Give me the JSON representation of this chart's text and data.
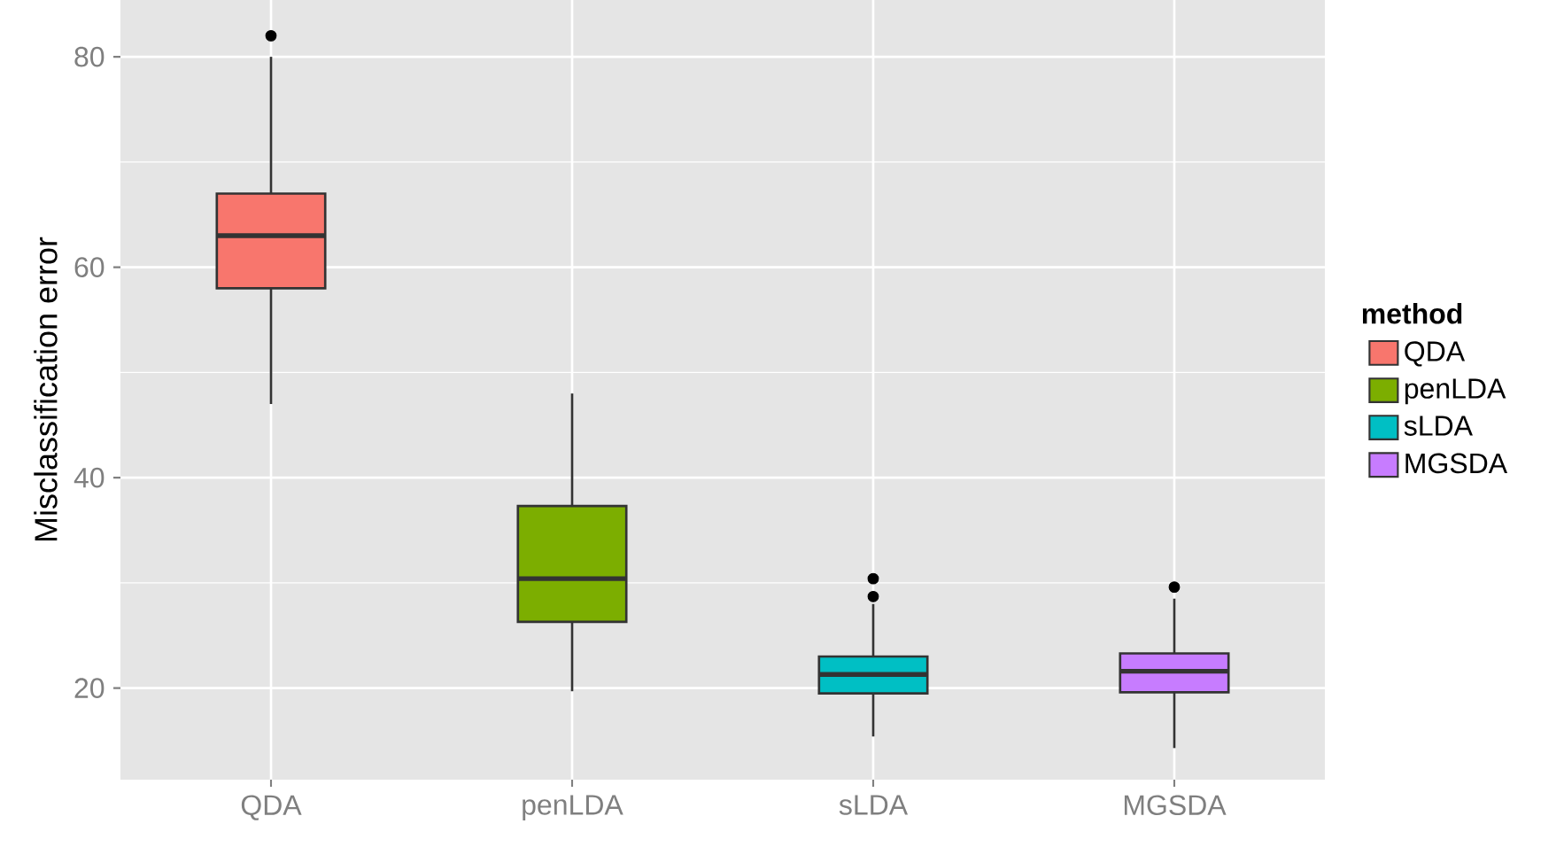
{
  "chart_data": {
    "type": "box",
    "ylabel": "Misclassification error",
    "legend_title": "method",
    "categories": [
      "QDA",
      "penLDA",
      "sLDA",
      "MGSDA"
    ],
    "series": [
      {
        "name": "QDA",
        "color": "#f8766d",
        "boxes": [
          {
            "low": 47,
            "q1": 58,
            "median": 63,
            "q3": 67,
            "high": 80,
            "outliers": [
              82
            ]
          },
          null,
          null,
          null
        ]
      },
      {
        "name": "penLDA",
        "color": "#7cae00",
        "boxes": [
          null,
          {
            "low": 19.7,
            "q1": 26.3,
            "median": 30.4,
            "q3": 37.3,
            "high": 48
          },
          null,
          null
        ]
      },
      {
        "name": "sLDA",
        "color": "#00bfc4",
        "boxes": [
          null,
          null,
          {
            "low": 15.4,
            "q1": 19.5,
            "median": 21.3,
            "q3": 23,
            "high": 28,
            "outliers": [
              30.4,
              28.7
            ]
          },
          null
        ]
      },
      {
        "name": "MGSDA",
        "color": "#c77cff",
        "boxes": [
          null,
          null,
          null,
          {
            "low": 14.3,
            "q1": 19.6,
            "median": 21.6,
            "q3": 23.3,
            "high": 28.5,
            "outliers": [
              29.6
            ]
          }
        ]
      }
    ],
    "ylim": [
      11.3,
      85.4
    ],
    "yticks": [
      20,
      40,
      60,
      80
    ],
    "grid": true,
    "legend": "right"
  }
}
